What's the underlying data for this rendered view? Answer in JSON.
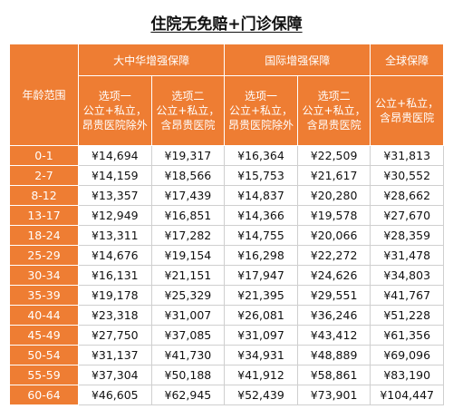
{
  "title": "住院无免赔+门诊保障",
  "header": {
    "age_range": "年龄范围",
    "groups": [
      "大中华增强保障",
      "国际增强保障",
      "全球保障"
    ],
    "options": [
      [
        "选项一",
        "公立+私立，",
        "昂贵医院除外"
      ],
      [
        "选项二",
        "公立+私立，",
        "含昂贵医院"
      ],
      [
        "选项一",
        "公立+私立，",
        "昂贵医院除外"
      ],
      [
        "选项二",
        "公立+私立，",
        "含昂贵医院"
      ],
      [
        "公立+私立，",
        "含昂贵医院"
      ]
    ]
  },
  "rows": [
    {
      "age": "0-1",
      "values": [
        "¥14,694",
        "¥19,317",
        "¥16,364",
        "¥22,509",
        "¥31,813"
      ]
    },
    {
      "age": "2-7",
      "values": [
        "¥14,159",
        "¥18,566",
        "¥15,753",
        "¥21,617",
        "¥30,552"
      ]
    },
    {
      "age": "8-12",
      "values": [
        "¥13,357",
        "¥17,439",
        "¥14,837",
        "¥20,280",
        "¥28,662"
      ]
    },
    {
      "age": "13-17",
      "values": [
        "¥12,949",
        "¥16,851",
        "¥14,366",
        "¥19,578",
        "¥27,670"
      ]
    },
    {
      "age": "18-24",
      "values": [
        "¥13,311",
        "¥17,282",
        "¥14,755",
        "¥20,066",
        "¥28,359"
      ]
    },
    {
      "age": "25-29",
      "values": [
        "¥14,676",
        "¥19,154",
        "¥16,298",
        "¥22,272",
        "¥31,478"
      ]
    },
    {
      "age": "30-34",
      "values": [
        "¥16,131",
        "¥21,151",
        "¥17,947",
        "¥24,626",
        "¥34,803"
      ]
    },
    {
      "age": "35-39",
      "values": [
        "¥19,178",
        "¥25,329",
        "¥21,395",
        "¥29,551",
        "¥41,767"
      ]
    },
    {
      "age": "40-44",
      "values": [
        "¥23,318",
        "¥31,007",
        "¥26,081",
        "¥36,246",
        "¥51,228"
      ]
    },
    {
      "age": "45-49",
      "values": [
        "¥27,750",
        "¥37,085",
        "¥31,097",
        "¥43,412",
        "¥61,356"
      ]
    },
    {
      "age": "50-54",
      "values": [
        "¥31,137",
        "¥41,730",
        "¥34,931",
        "¥48,889",
        "¥69,096"
      ]
    },
    {
      "age": "55-59",
      "values": [
        "¥37,304",
        "¥50,188",
        "¥41,912",
        "¥58,861",
        "¥83,190"
      ]
    },
    {
      "age": "60-64",
      "values": [
        "¥46,605",
        "¥62,945",
        "¥52,439",
        "¥73,901",
        "¥104,447"
      ]
    }
  ],
  "colors": {
    "header_bg": "#ee7d33",
    "header_text": "#ffffff",
    "cell_border": "#cfcfcf"
  }
}
